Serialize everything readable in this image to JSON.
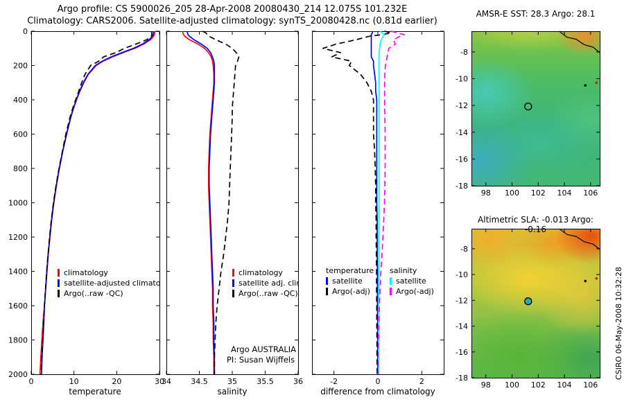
{
  "title": {
    "line1": "Argo profile: CS 5900026_205 28-Apr-2008 20080430_214 12.075S 101.232E",
    "line2": "Climatology: CARS2006. Satellite-adjusted climatology: synTS_20080428.nc (0.81d earlier)"
  },
  "watermark": "CSIRO 06-May-2008 10:32:28",
  "annotations": {
    "line1": "Argo AUSTRALIA",
    "line2": "PI: Susan Wijffels"
  },
  "colors": {
    "climatology": "#ff0000",
    "satellite_adjusted": "#0000ff",
    "argo": "#000000",
    "salinity_satellite": "#00ffff",
    "salinity_argo": "#ff00ff"
  },
  "legends": {
    "temperature": {
      "items": [
        {
          "label": "climatology",
          "color": "#ff0000",
          "dash": false
        },
        {
          "label": "satellite-adjusted climatology",
          "color": "#0000ff",
          "dash": false
        },
        {
          "label": "Argo(..raw -QC)",
          "color": "#000000",
          "dash": true
        }
      ]
    },
    "salinity": {
      "items": [
        {
          "label": "climatology",
          "color": "#ff0000",
          "dash": false
        },
        {
          "label": "satellite adj. clim.",
          "color": "#0000ff",
          "dash": false
        },
        {
          "label": "Argo(..raw -QC)",
          "color": "#000000",
          "dash": true
        }
      ]
    },
    "difference_temperature": {
      "header": "temperature",
      "items": [
        {
          "label": "satellite",
          "color": "#0000ff",
          "dash": false
        },
        {
          "label": "Argo(-adj)",
          "color": "#000000",
          "dash": true
        }
      ]
    },
    "difference_salinity": {
      "header": "salinity",
      "items": [
        {
          "label": "satellite",
          "color": "#00ffff",
          "dash": false
        },
        {
          "label": "Argo(-adj)",
          "color": "#ff00ff",
          "dash": true
        }
      ]
    }
  },
  "chart_data": [
    {
      "id": "temperature_profile",
      "type": "line",
      "xlabel": "temperature",
      "ylabel": "",
      "xlim": [
        0,
        30
      ],
      "ylim": [
        0,
        2000
      ],
      "y_inverted": true,
      "xticks": [
        0,
        10,
        20,
        30
      ],
      "yticks": [
        0,
        200,
        400,
        600,
        800,
        1000,
        1200,
        1400,
        1600,
        1800,
        2000
      ],
      "pressure": [
        0,
        10,
        20,
        30,
        50,
        75,
        100,
        125,
        150,
        175,
        200,
        250,
        300,
        350,
        400,
        450,
        500,
        600,
        700,
        800,
        900,
        1000,
        1100,
        1200,
        1300,
        1400,
        1500,
        1600,
        1700,
        1800,
        1900,
        2000
      ],
      "series": [
        {
          "name": "climatology",
          "color": "#ff0000",
          "dash": false,
          "values": [
            28.9,
            28.9,
            28.8,
            28.6,
            27.9,
            26.3,
            24.2,
            21.5,
            19.0,
            16.8,
            15.2,
            13.4,
            12.3,
            11.4,
            10.6,
            9.9,
            9.3,
            8.3,
            7.4,
            6.6,
            5.9,
            5.3,
            4.8,
            4.4,
            4.0,
            3.7,
            3.4,
            3.1,
            2.75,
            2.5,
            2.25,
            2.05
          ]
        },
        {
          "name": "satellite-adjusted climatology",
          "color": "#0000ff",
          "dash": false,
          "values": [
            28.6,
            28.6,
            28.5,
            28.3,
            27.6,
            26.0,
            23.9,
            21.2,
            18.7,
            16.6,
            15.0,
            13.3,
            12.2,
            11.3,
            10.55,
            9.85,
            9.25,
            8.25,
            7.35,
            6.55,
            5.85,
            5.25,
            4.75,
            4.35,
            3.95,
            3.65,
            3.38,
            3.12,
            2.95,
            2.75,
            2.55,
            2.4
          ]
        },
        {
          "name": "Argo(..raw -QC)",
          "color": "#000000",
          "dash": true,
          "values": [
            28.1,
            28.2,
            28.2,
            28.1,
            27.0,
            24.5,
            21.8,
            19.8,
            16.9,
            15.8,
            13.9,
            12.6,
            11.8,
            11.1,
            10.4,
            9.7,
            9.1,
            8.1,
            7.3,
            6.5,
            5.8,
            5.2,
            4.7,
            4.3,
            3.95,
            3.62,
            3.35,
            3.08,
            2.9,
            2.7,
            2.5,
            2.35
          ]
        }
      ]
    },
    {
      "id": "salinity_profile",
      "type": "line",
      "xlabel": "salinity",
      "ylabel": "",
      "xlim": [
        34,
        36
      ],
      "ylim": [
        0,
        2000
      ],
      "y_inverted": true,
      "xticks": [
        34,
        34.5,
        35,
        35.5,
        36
      ],
      "yticks": [
        0,
        200,
        400,
        600,
        800,
        1000,
        1200,
        1400,
        1600,
        1800,
        2000
      ],
      "pressure": [
        0,
        10,
        20,
        30,
        50,
        75,
        100,
        125,
        150,
        175,
        200,
        250,
        300,
        350,
        400,
        450,
        500,
        600,
        700,
        800,
        900,
        1000,
        1100,
        1200,
        1300,
        1400,
        1500,
        1600,
        1700,
        1800,
        1900,
        2000
      ],
      "series": [
        {
          "name": "climatology",
          "color": "#ff0000",
          "dash": false,
          "values": [
            34.25,
            34.25,
            34.26,
            34.28,
            34.35,
            34.48,
            34.58,
            34.64,
            34.68,
            34.7,
            34.71,
            34.72,
            34.72,
            34.71,
            34.7,
            34.69,
            34.68,
            34.66,
            34.65,
            34.64,
            34.64,
            34.65,
            34.66,
            34.67,
            34.68,
            34.69,
            34.7,
            34.7,
            34.71,
            34.71,
            34.72,
            34.72
          ]
        },
        {
          "name": "satellite adj. clim.",
          "color": "#0000ff",
          "dash": false,
          "values": [
            34.32,
            34.32,
            34.33,
            34.35,
            34.42,
            34.53,
            34.62,
            34.67,
            34.7,
            34.72,
            34.73,
            34.73,
            34.73,
            34.72,
            34.71,
            34.7,
            34.69,
            34.67,
            34.66,
            34.65,
            34.65,
            34.66,
            34.67,
            34.68,
            34.69,
            34.7,
            34.71,
            34.71,
            34.72,
            34.72,
            34.73,
            34.73
          ]
        },
        {
          "name": "Argo(..raw -QC)",
          "color": "#000000",
          "dash": true,
          "values": [
            34.55,
            34.6,
            34.62,
            34.65,
            34.75,
            34.9,
            35.0,
            35.06,
            35.1,
            35.08,
            35.05,
            35.04,
            35.03,
            35.02,
            35.01,
            35.0,
            35.0,
            34.99,
            34.98,
            34.97,
            34.96,
            34.95,
            34.93,
            34.9,
            34.87,
            34.83,
            34.8,
            34.77,
            34.75,
            34.74,
            34.73,
            34.73
          ]
        }
      ]
    },
    {
      "id": "difference_profile",
      "type": "line",
      "xlabel": "difference from climatology",
      "ylabel": "",
      "xlim": [
        -3,
        3
      ],
      "ylim": [
        0,
        2000
      ],
      "y_inverted": true,
      "xticks": [
        -2,
        0,
        2
      ],
      "yticks": [
        0,
        200,
        400,
        600,
        800,
        1000,
        1200,
        1400,
        1600,
        1800,
        2000
      ],
      "pressure": [
        0,
        10,
        20,
        30,
        50,
        75,
        100,
        125,
        150,
        175,
        200,
        250,
        300,
        350,
        400,
        450,
        500,
        600,
        700,
        800,
        900,
        1000,
        1100,
        1200,
        1300,
        1400,
        1500,
        1600,
        1700,
        1800,
        1900,
        2000
      ],
      "series": [
        {
          "name": "temperature satellite",
          "color": "#0000ff",
          "dash": false,
          "values": [
            -0.25,
            -0.25,
            -0.3,
            -0.3,
            -0.3,
            -0.3,
            -0.3,
            -0.3,
            -0.3,
            -0.2,
            -0.2,
            -0.15,
            -0.1,
            -0.1,
            -0.05,
            -0.05,
            -0.05,
            -0.05,
            -0.05,
            -0.05,
            -0.05,
            -0.05,
            -0.03,
            -0.03,
            -0.03,
            -0.02,
            -0.02,
            -0.02,
            -0.01,
            -0.01,
            -0.01,
            -0.01
          ]
        },
        {
          "name": "temperature Argo(-adj)",
          "color": "#000000",
          "dash": true,
          "values": [
            0.3,
            0.6,
            0.2,
            -0.4,
            -1.0,
            -1.9,
            -2.5,
            -1.7,
            -2.1,
            -1.2,
            -1.3,
            -0.8,
            -0.5,
            -0.3,
            -0.2,
            -0.2,
            -0.2,
            -0.2,
            -0.15,
            -0.12,
            -0.1,
            -0.1,
            -0.08,
            -0.08,
            -0.07,
            -0.06,
            -0.06,
            -0.05,
            -0.05,
            -0.04,
            -0.04,
            -0.03
          ]
        },
        {
          "name": "salinity satellite",
          "color": "#00ffff",
          "dash": false,
          "values": [
            0.1,
            0.2,
            0.3,
            0.25,
            0.15,
            0.1,
            0.08,
            0.06,
            0.05,
            0.05,
            0.05,
            0.05,
            0.05,
            0.05,
            0.05,
            0.05,
            0.05,
            0.05,
            0.05,
            0.05,
            0.05,
            0.05,
            0.05,
            0.04,
            0.04,
            0.04,
            0.04,
            0.03,
            0.03,
            0.03,
            0.03,
            0.03
          ]
        },
        {
          "name": "salinity Argo(-adj)",
          "color": "#ff00ff",
          "dash": true,
          "values": [
            0.6,
            0.9,
            1.2,
            1.0,
            0.7,
            0.8,
            0.5,
            0.45,
            0.42,
            0.38,
            0.34,
            0.32,
            0.31,
            0.31,
            0.31,
            0.31,
            0.32,
            0.33,
            0.33,
            0.33,
            0.32,
            0.3,
            0.27,
            0.23,
            0.19,
            0.14,
            0.1,
            0.07,
            0.05,
            0.03,
            0.02,
            0.01
          ]
        }
      ]
    },
    {
      "id": "sst_map",
      "type": "heatmap",
      "title": "AMSR-E SST: 28.3 Argo: 28.1",
      "sst_at_float": 28.3,
      "argo_sst": 28.1,
      "xlim": [
        96.9,
        106.7
      ],
      "ylim": [
        -6.45,
        -18
      ],
      "xticks": [
        98,
        100,
        102,
        104,
        106
      ],
      "yticks": [
        -8,
        -10,
        -12,
        -14,
        -16,
        -18
      ],
      "float_marker": {
        "lon": 101.232,
        "lat": -12.075
      },
      "palette": [
        "#3cb4d8",
        "#40c8a0",
        "#52bd52",
        "#9cc83c",
        "#f0a030",
        "#e85010"
      ],
      "features": [
        "warm orange patch at Sumatra coast top-right",
        "cool cyan patches west and southwest",
        "mostly mid-range green SST field"
      ]
    },
    {
      "id": "sla_map",
      "type": "heatmap",
      "title": "Altimetric SLA: -0.013 Argo: -0.16",
      "sla_at_float": -0.013,
      "argo_sla": -0.16,
      "xlim": [
        96.9,
        106.7
      ],
      "ylim": [
        -6.45,
        -18
      ],
      "xticks": [
        98,
        100,
        102,
        104,
        106
      ],
      "yticks": [
        -8,
        -10,
        -12,
        -14,
        -16,
        -18
      ],
      "float_marker": {
        "lon": 101.232,
        "lat": -12.075
      },
      "palette": [
        "#2db84f",
        "#86c543",
        "#f0d040",
        "#f0a030",
        "#e85010"
      ],
      "features": [
        "high SLA orange/red along top",
        "yellow band across upper half",
        "low green SLA across lower half"
      ]
    }
  ]
}
